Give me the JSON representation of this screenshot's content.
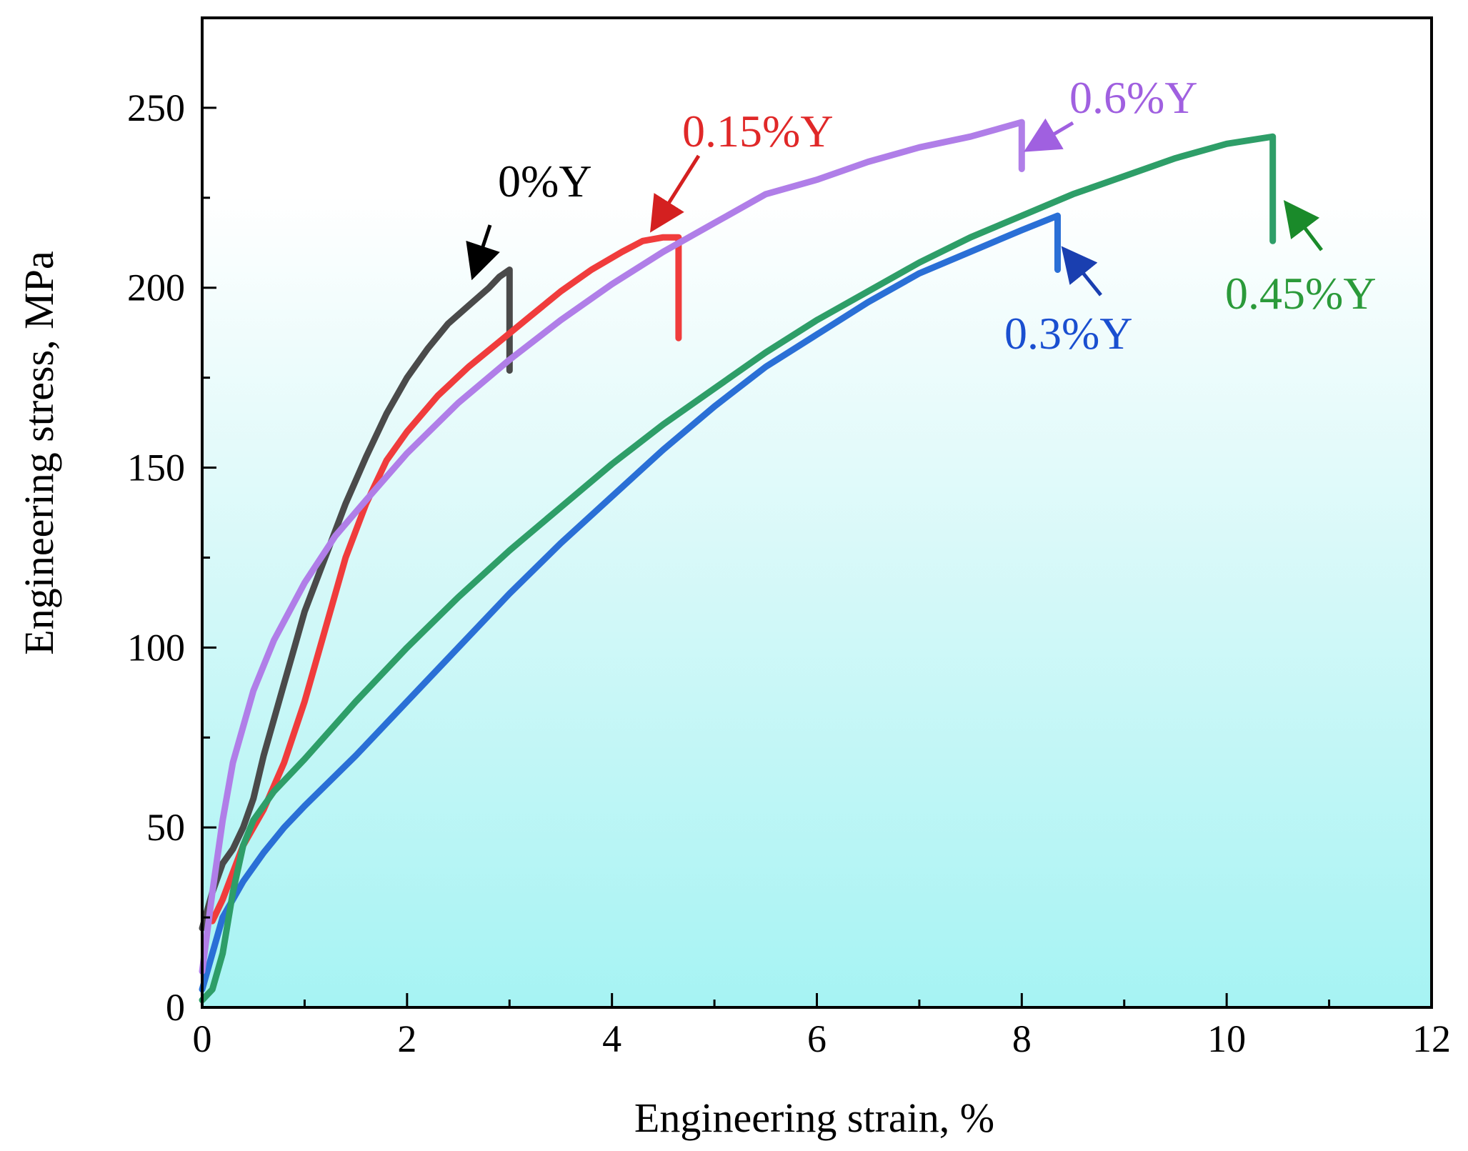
{
  "chart_data": {
    "type": "line",
    "title": "",
    "xlabel": "Engineering strain, %",
    "ylabel": "Engineering stress, MPa",
    "xlim": [
      0,
      12
    ],
    "ylim": [
      0,
      275
    ],
    "x_ticks": [
      0,
      2,
      4,
      6,
      8,
      10,
      12
    ],
    "y_ticks": [
      0,
      50,
      100,
      150,
      200,
      250
    ],
    "background": "cyan-gradient",
    "series": [
      {
        "name": "0%Y",
        "color": "#4a4a4a",
        "arrow_color": "#000000",
        "x": [
          0,
          0.1,
          0.2,
          0.3,
          0.4,
          0.5,
          0.6,
          0.7,
          0.8,
          0.9,
          1.0,
          1.2,
          1.4,
          1.6,
          1.8,
          2.0,
          2.2,
          2.4,
          2.6,
          2.8,
          2.9,
          3.0,
          3.0
        ],
        "y": [
          22,
          32,
          40,
          44,
          50,
          58,
          70,
          80,
          90,
          100,
          110,
          125,
          140,
          153,
          165,
          175,
          183,
          190,
          195,
          200,
          203,
          205,
          177
        ]
      },
      {
        "name": "0.15%Y",
        "color": "#f03c3c",
        "arrow_color": "#d42020",
        "x": [
          0.1,
          0.2,
          0.4,
          0.6,
          0.8,
          1.0,
          1.2,
          1.4,
          1.6,
          1.8,
          2.0,
          2.3,
          2.6,
          2.9,
          3.2,
          3.5,
          3.8,
          4.1,
          4.3,
          4.5,
          4.65,
          4.65
        ],
        "y": [
          24,
          30,
          45,
          55,
          68,
          85,
          105,
          125,
          140,
          152,
          160,
          170,
          178,
          185,
          192,
          199,
          205,
          210,
          213,
          214,
          214,
          186
        ]
      },
      {
        "name": "0.3%Y",
        "color": "#2a6fd6",
        "arrow_color": "#1a3fb0",
        "x": [
          0,
          0.1,
          0.2,
          0.4,
          0.6,
          0.8,
          1.0,
          1.5,
          2.0,
          2.5,
          3.0,
          3.5,
          4.0,
          4.5,
          5.0,
          5.5,
          6.0,
          6.5,
          7.0,
          7.5,
          8.0,
          8.35,
          8.35
        ],
        "y": [
          5,
          15,
          25,
          35,
          43,
          50,
          56,
          70,
          85,
          100,
          115,
          129,
          142,
          155,
          167,
          178,
          187,
          196,
          204,
          210,
          216,
          220,
          205
        ]
      },
      {
        "name": "0.45%Y",
        "color": "#2e9e68",
        "arrow_color": "#1a8a2a",
        "x": [
          0,
          0.1,
          0.2,
          0.3,
          0.4,
          0.5,
          0.7,
          1.0,
          1.5,
          2.0,
          2.5,
          3.0,
          3.5,
          4.0,
          4.5,
          5.0,
          5.5,
          6.0,
          6.5,
          7.0,
          7.5,
          8.0,
          8.5,
          9.0,
          9.5,
          10.0,
          10.45,
          10.45
        ],
        "y": [
          2,
          5,
          15,
          32,
          45,
          52,
          60,
          69,
          85,
          100,
          114,
          127,
          139,
          151,
          162,
          172,
          182,
          191,
          199,
          207,
          214,
          220,
          226,
          231,
          236,
          240,
          242,
          213
        ]
      },
      {
        "name": "0.6%Y",
        "color": "#b07ee8",
        "arrow_color": "#a060e0",
        "x": [
          0,
          0.1,
          0.2,
          0.3,
          0.5,
          0.7,
          1.0,
          1.3,
          1.6,
          2.0,
          2.5,
          3.0,
          3.5,
          4.0,
          4.5,
          5.0,
          5.5,
          6.0,
          6.5,
          7.0,
          7.5,
          8.0,
          8.0
        ],
        "y": [
          10,
          32,
          52,
          68,
          88,
          102,
          118,
          131,
          141,
          154,
          168,
          180,
          191,
          201,
          210,
          218,
          226,
          230,
          235,
          239,
          242,
          246,
          233
        ]
      }
    ]
  }
}
